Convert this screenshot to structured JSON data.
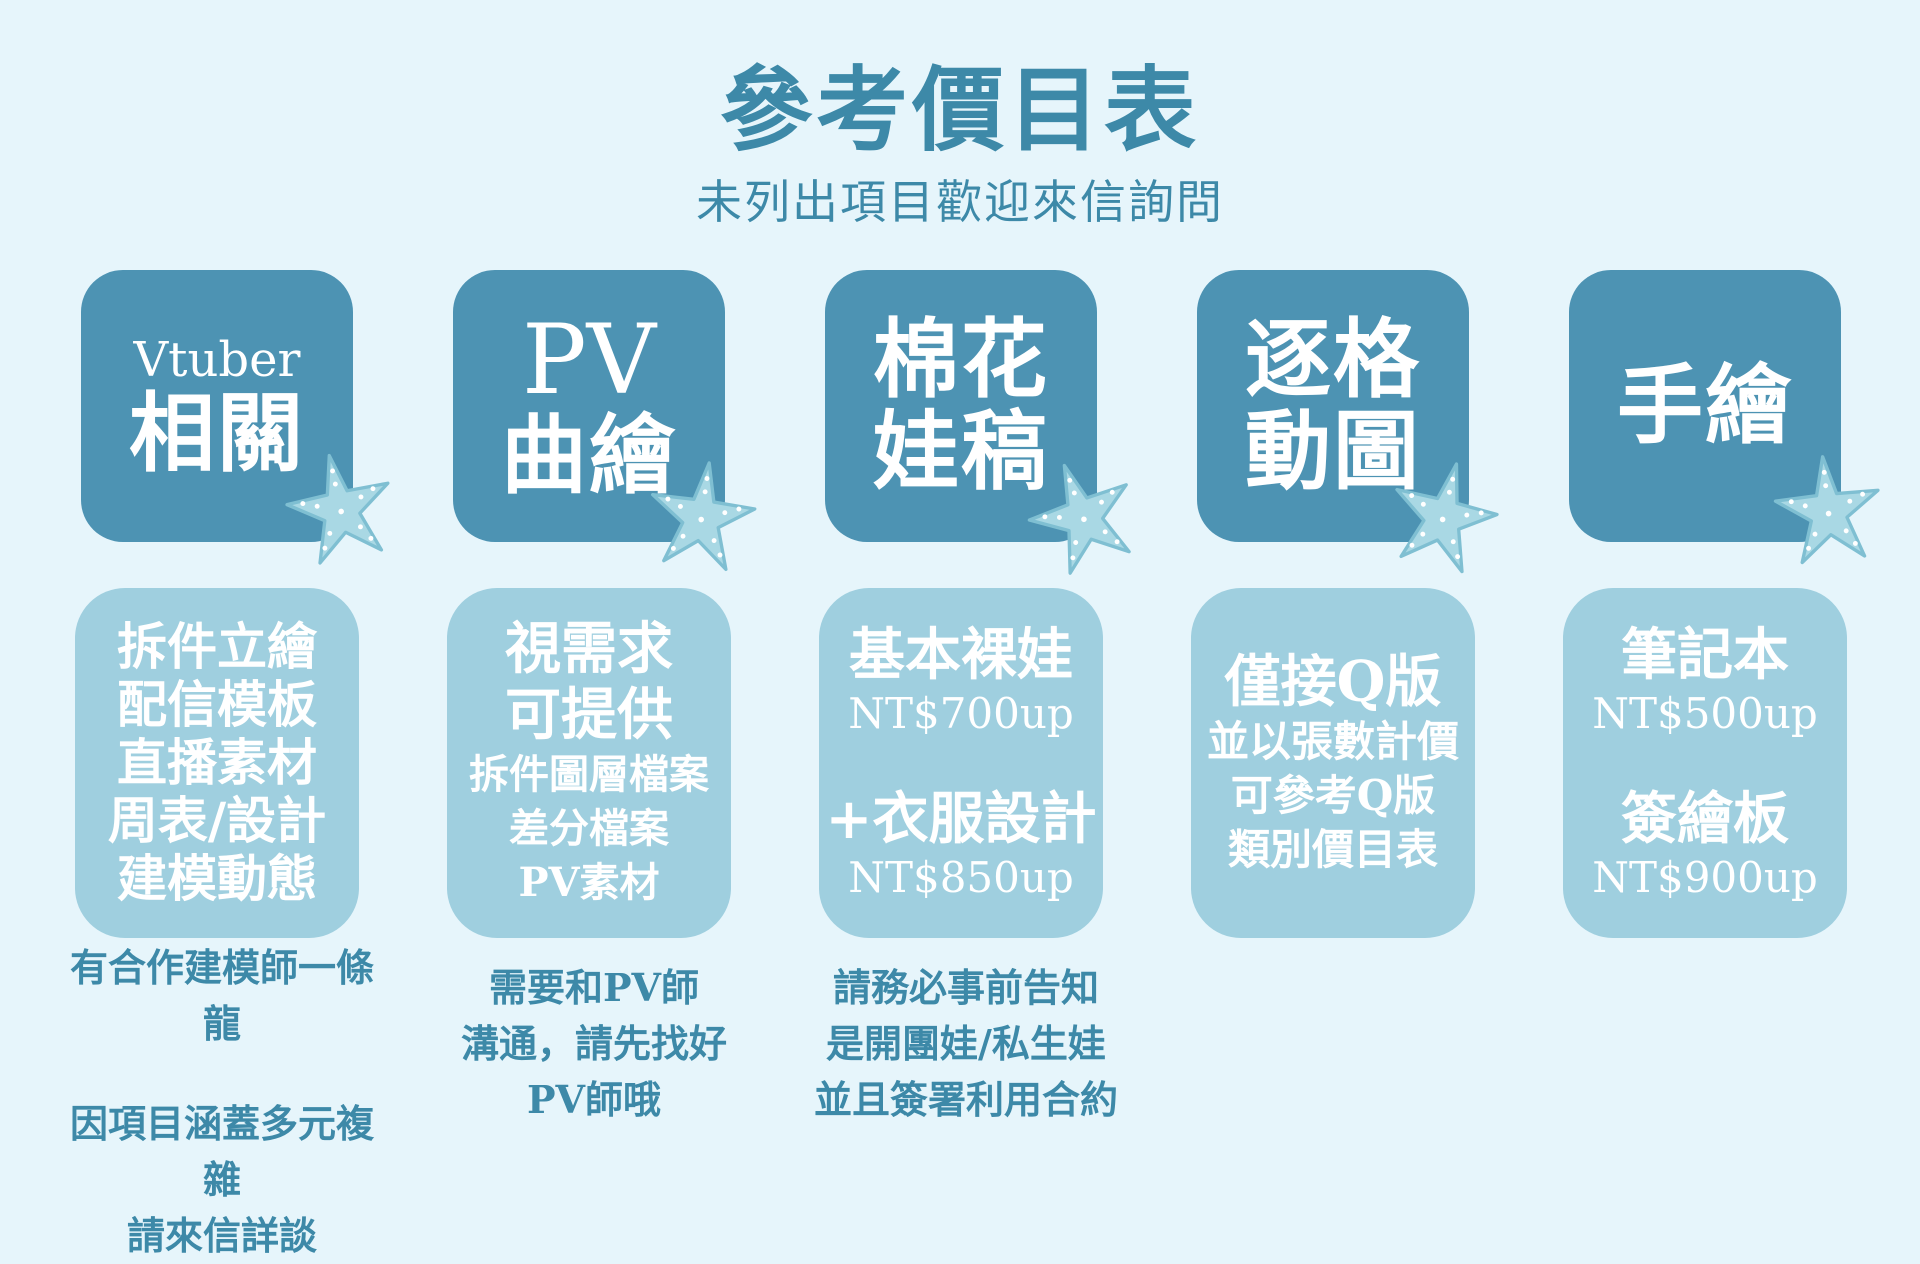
{
  "header": {
    "title": "參考價目表",
    "subtitle": "未列出項目歡迎來信詢問"
  },
  "columns": [
    {
      "head": {
        "line1": "Vtuber",
        "line2": "相關"
      },
      "body": [
        "拆件立繪",
        "配信模板",
        "直播素材",
        "周表/設計",
        "建模動態"
      ],
      "note": [
        "有合作建模師一條龍",
        "",
        "因項目涵蓋多元複雜",
        "請來信詳談"
      ]
    },
    {
      "head": {
        "line1": "PV",
        "line2": "曲繪"
      },
      "body": [
        "視需求",
        "可提供",
        "拆件圖層檔案",
        "差分檔案",
        "PV素材"
      ],
      "note": [
        "需要和PV師",
        "溝通，請先找好",
        "PV師哦"
      ]
    },
    {
      "head": {
        "line1": "棉花",
        "line2": "娃稿"
      },
      "body": [
        "基本裸娃",
        "NT$700up",
        "+衣服設計",
        "NT$850up"
      ],
      "note": [
        "請務必事前告知",
        "是開團娃/私生娃",
        "並且簽署利用合約"
      ]
    },
    {
      "head": {
        "line1": "逐格",
        "line2": "動圖"
      },
      "body": [
        "僅接Q版",
        "並以張數計價",
        "可參考Q版",
        "類別價目表"
      ]
    },
    {
      "head": {
        "line1": "手繪"
      },
      "body": [
        "筆記本",
        "NT$500up",
        "簽繪板",
        "NT$900up"
      ]
    }
  ],
  "colors": {
    "background": "#e6f5fb",
    "heading_tile": "#4d93b3",
    "body_tile": "#9fcfdf",
    "text_accent": "#3d89a8",
    "starfish": "#a9d8e4"
  },
  "icons": {
    "tile_decoration": "starfish-icon"
  }
}
